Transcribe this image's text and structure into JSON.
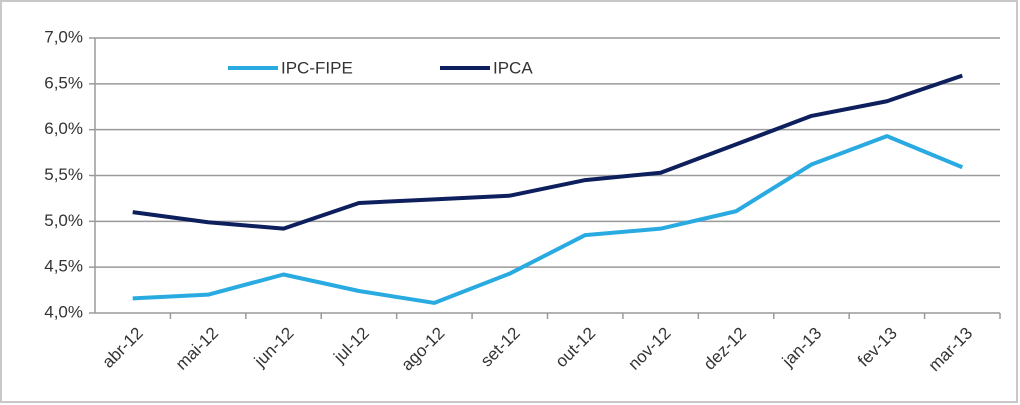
{
  "chart_data": {
    "type": "line",
    "categories": [
      "abr-12",
      "mai-12",
      "jun-12",
      "jul-12",
      "ago-12",
      "set-12",
      "out-12",
      "nov-12",
      "dez-12",
      "jan-13",
      "fev-13",
      "mar-13"
    ],
    "series": [
      {
        "name": "IPC-FIPE",
        "color": "#29abe2",
        "values": [
          4.16,
          4.2,
          4.42,
          4.24,
          4.11,
          4.43,
          4.85,
          4.92,
          5.11,
          5.62,
          5.93,
          5.59
        ]
      },
      {
        "name": "IPCA",
        "color": "#0d1f5c",
        "values": [
          5.1,
          4.99,
          4.92,
          5.2,
          5.24,
          5.28,
          5.45,
          5.53,
          5.84,
          6.15,
          6.31,
          6.59
        ]
      }
    ],
    "ylim": [
      4.0,
      7.0
    ],
    "yticks": [
      {
        "value": 4.0,
        "label": "4,0%"
      },
      {
        "value": 4.5,
        "label": "4,5%"
      },
      {
        "value": 5.0,
        "label": "5,0%"
      },
      {
        "value": 5.5,
        "label": "5,5%"
      },
      {
        "value": 6.0,
        "label": "6,0%"
      },
      {
        "value": 6.5,
        "label": "6,5%"
      },
      {
        "value": 7.0,
        "label": "7,0%"
      }
    ],
    "grid": true
  }
}
